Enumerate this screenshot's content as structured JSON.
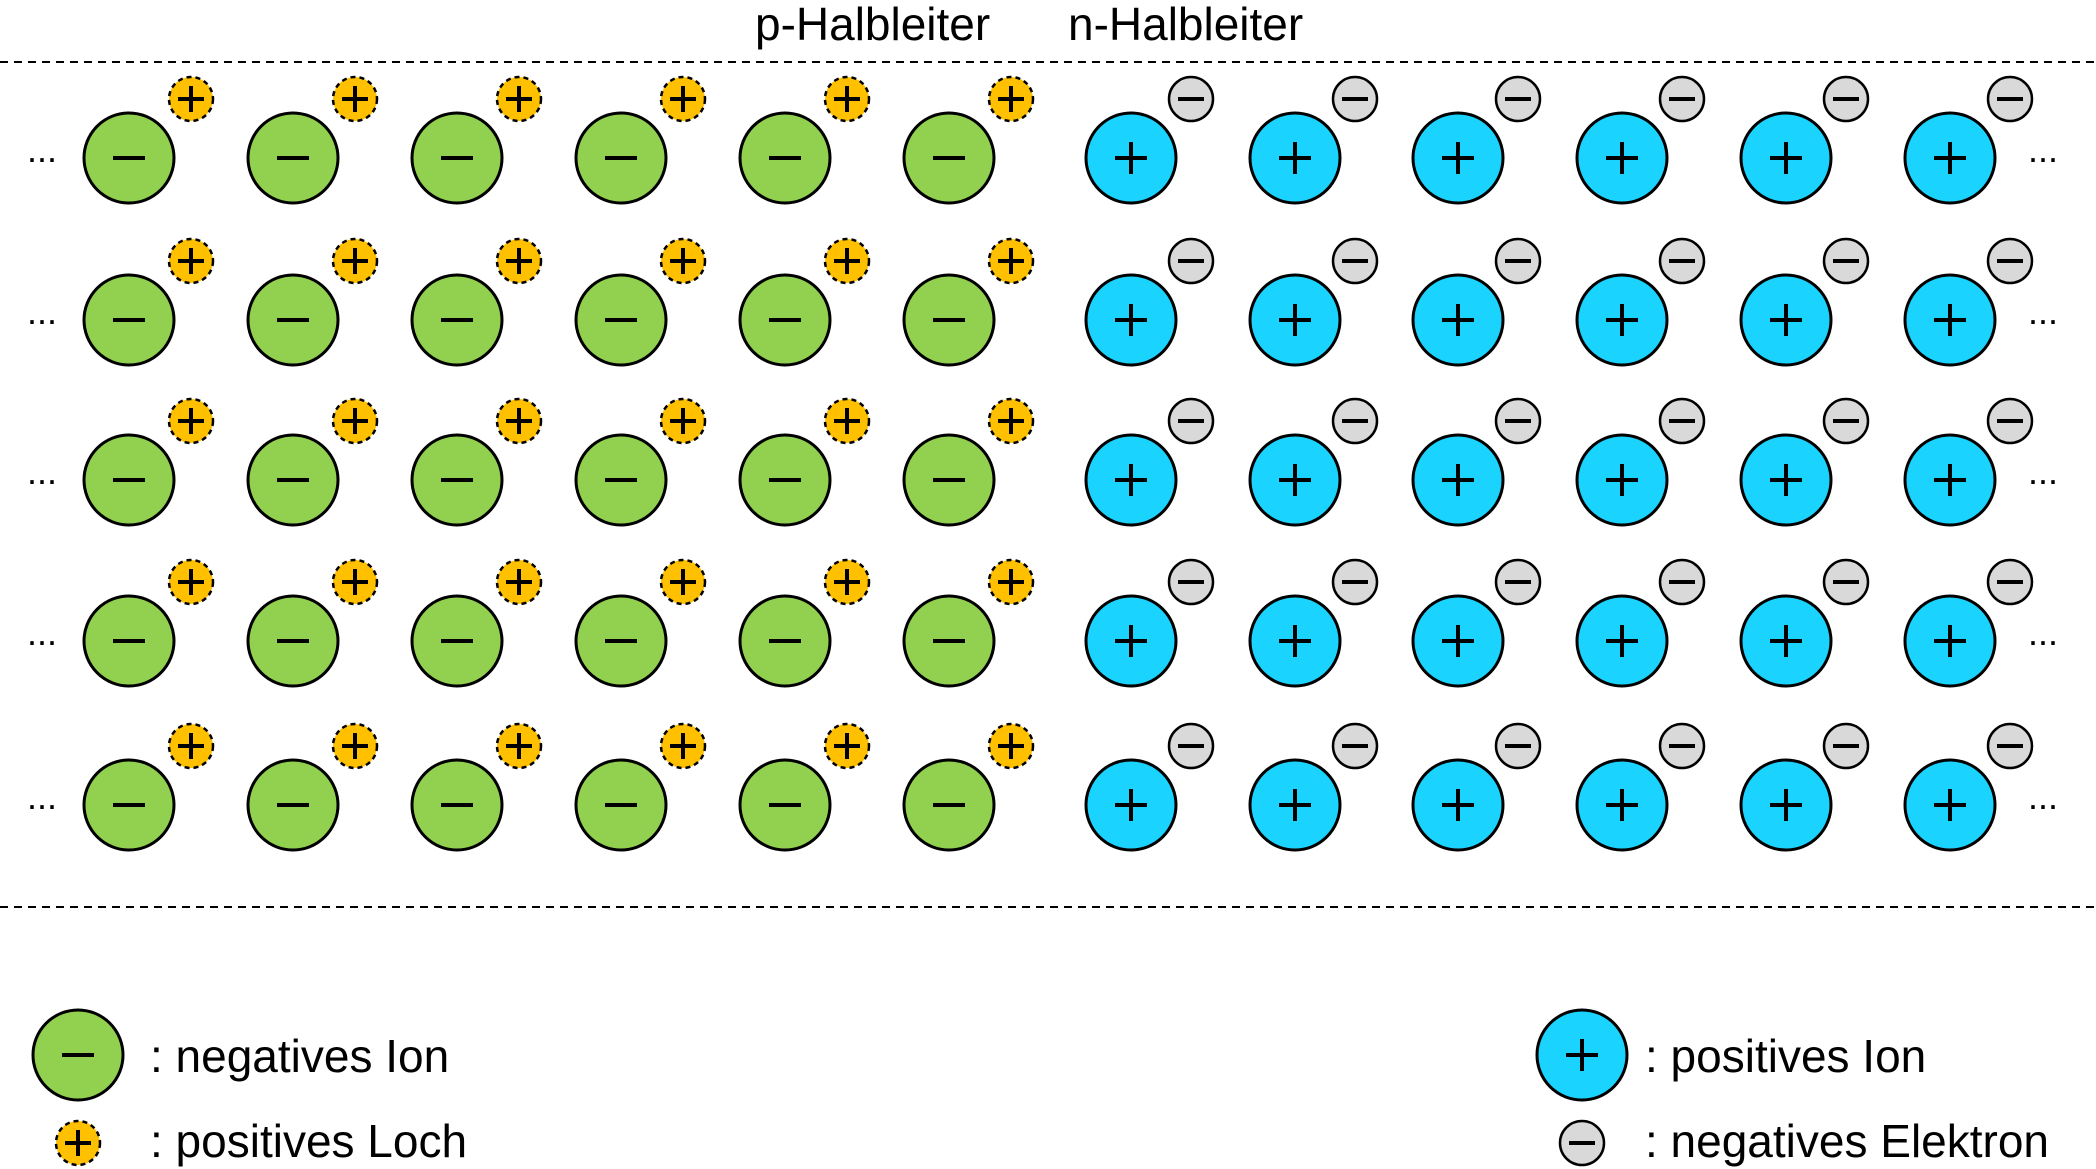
{
  "header": {
    "p_title": "p-Halbleiter",
    "n_title": "n-Halbleiter"
  },
  "lattice": {
    "rows": 5,
    "ions_per_side": 6,
    "ellipsis": "...",
    "negative_ion_sign": "−",
    "positive_ion_sign": "+",
    "hole_sign": "+",
    "electron_sign": "−"
  },
  "legend": {
    "negative_ion": ": negatives Ion",
    "positive_hole": ": positives Loch",
    "positive_ion": ": positives Ion",
    "negative_electron": ": negatives Elektron"
  },
  "colors": {
    "negative_ion_fill": "#92d050",
    "positive_ion_fill": "#1ad4ff",
    "hole_fill": "#ffc000",
    "electron_fill": "#d9d9d9",
    "outline": "#000000"
  }
}
